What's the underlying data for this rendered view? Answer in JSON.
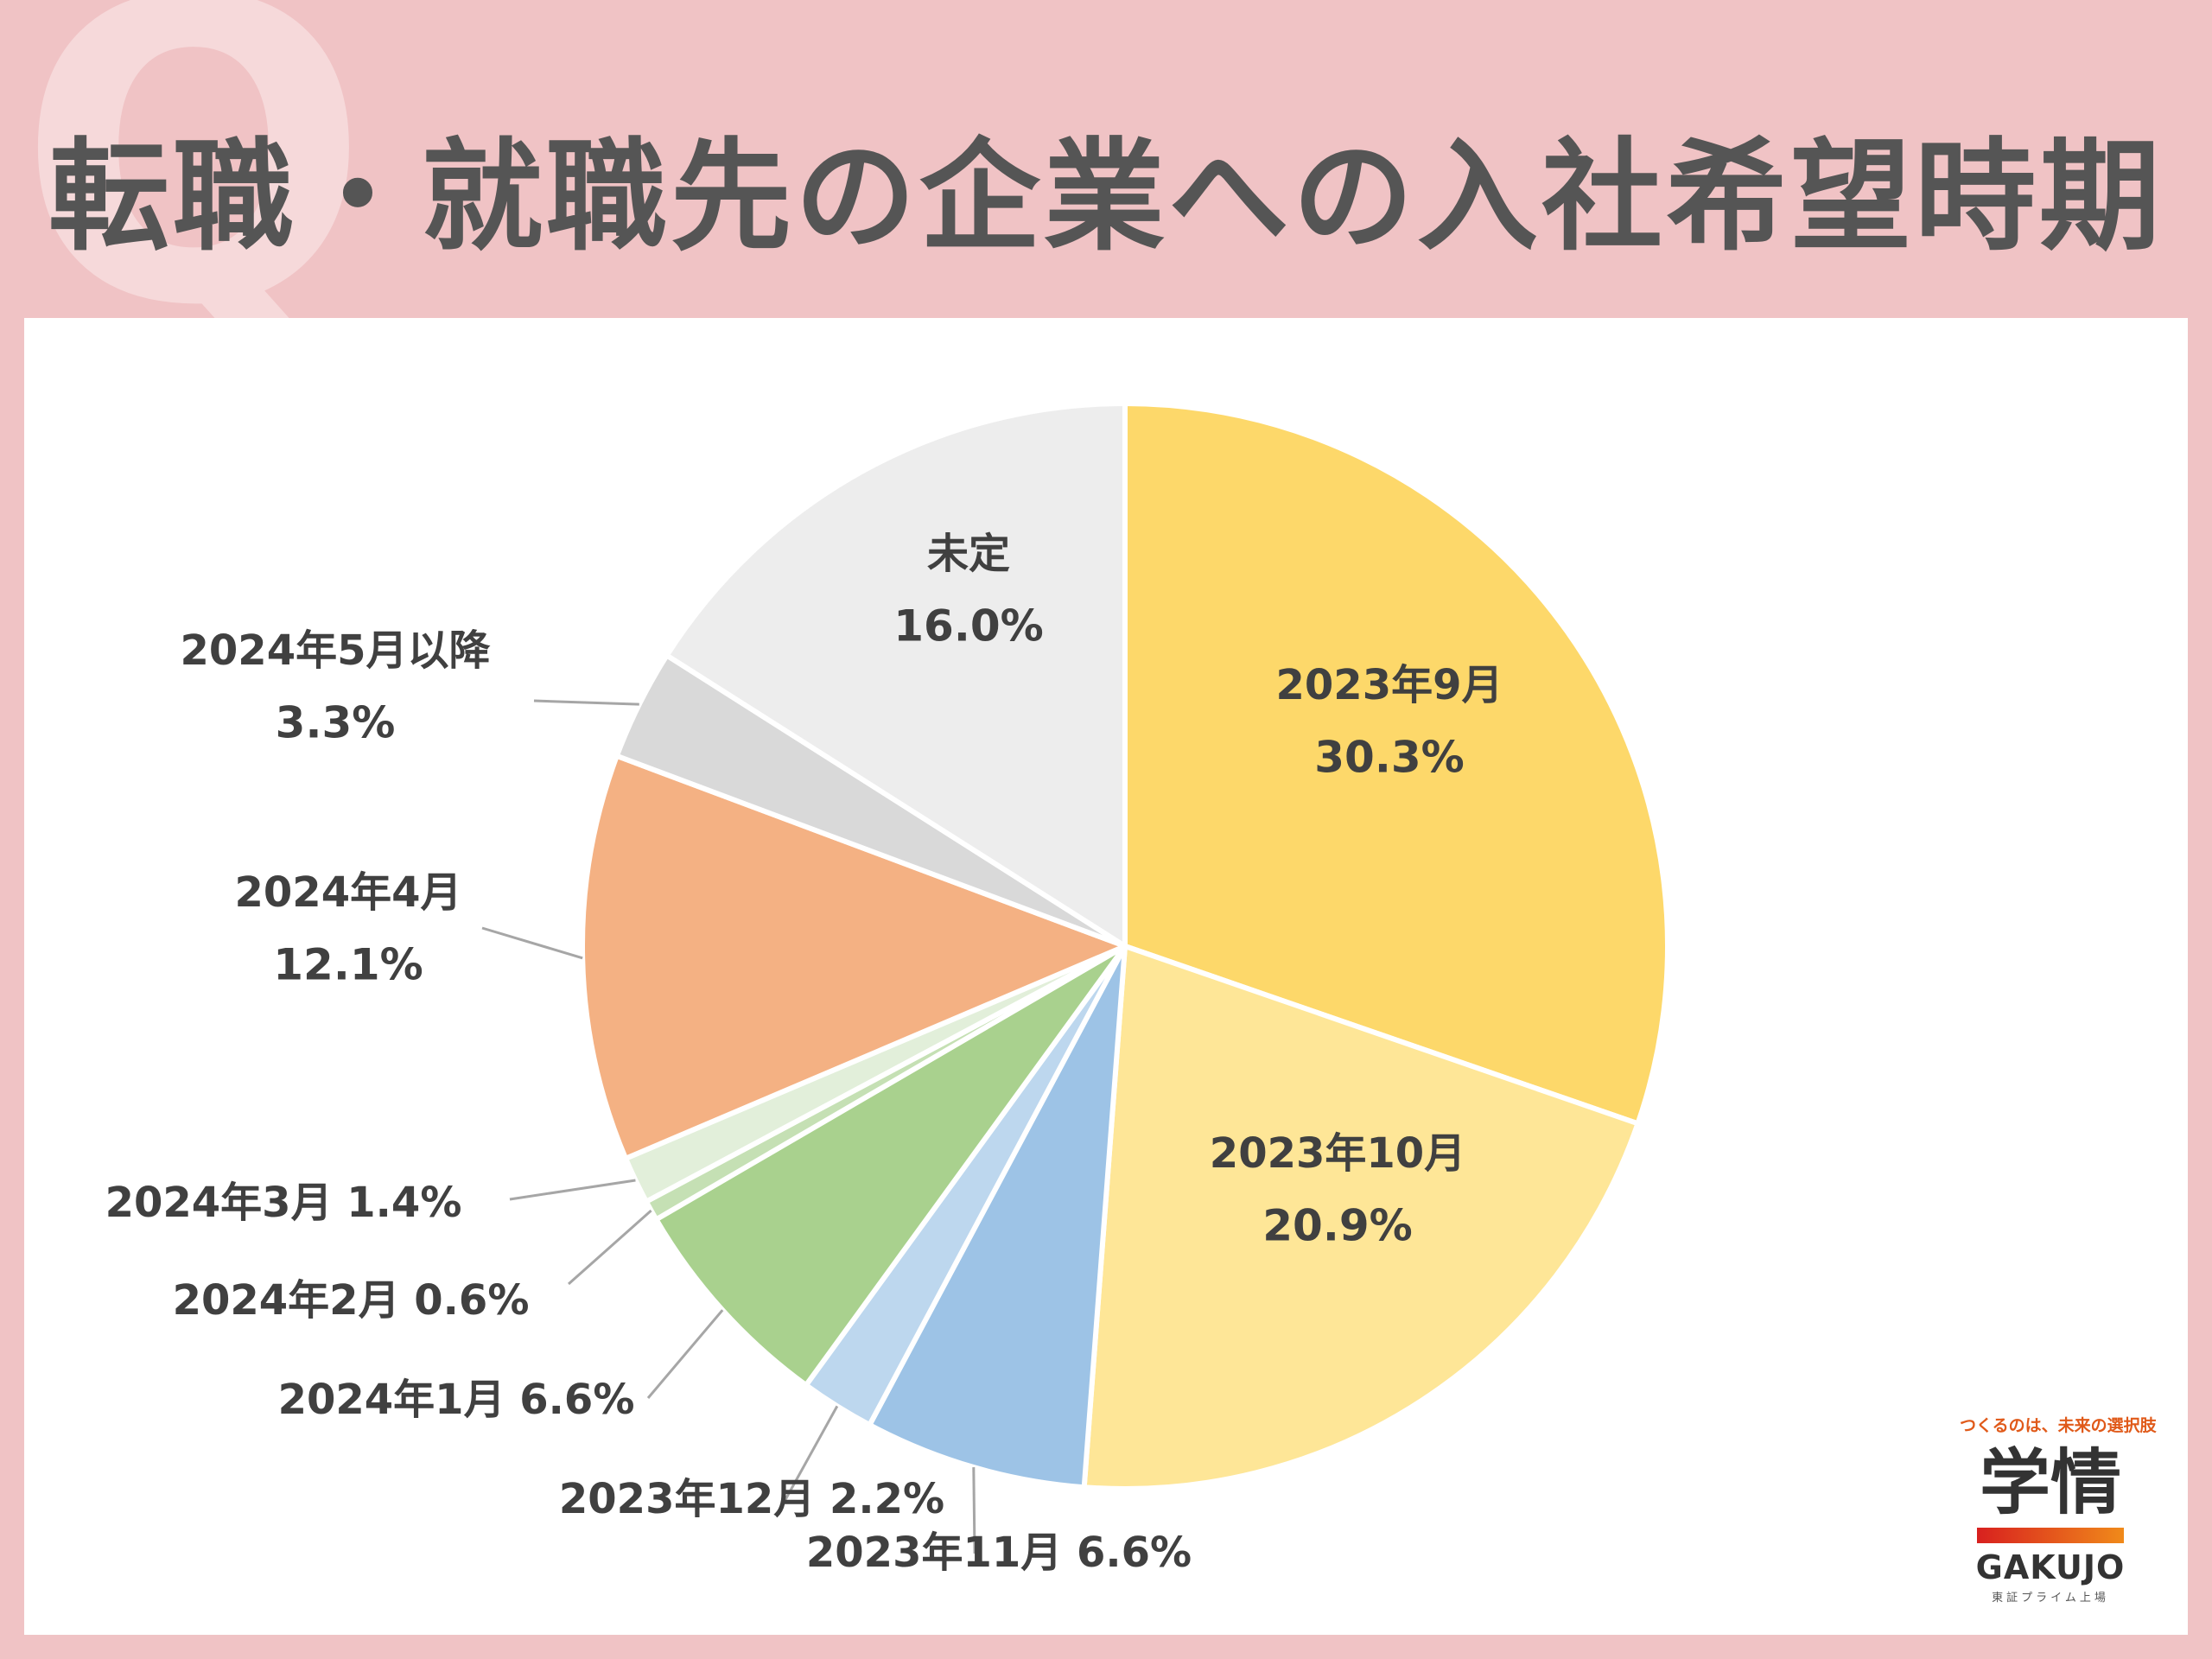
{
  "title": "転職・就職先の企業への入社希望時期",
  "q_mark": "Q",
  "logo": {
    "tagline": "つくるのは、未来の選択肢",
    "mark": "学情",
    "en": "GAKUJO",
    "sub": "東証プライム上場"
  },
  "chart_data": {
    "type": "pie",
    "title": "転職・就職先の企業への入社希望時期",
    "start_angle_deg": 0,
    "direction": "clockwise",
    "slices": [
      {
        "label": "2023年9月",
        "value": 30.3,
        "pct_text": "30.3%",
        "color": "#fdd86a",
        "label_style": "inside"
      },
      {
        "label": "2023年10月",
        "value": 20.9,
        "pct_text": "20.9%",
        "color": "#fee697",
        "label_style": "inside"
      },
      {
        "label": "2023年11月",
        "value": 6.6,
        "pct_text": "6.6%",
        "color": "#9dc3e6",
        "label_style": "outside-single"
      },
      {
        "label": "2023年12月",
        "value": 2.2,
        "pct_text": "2.2%",
        "color": "#bdd7ee",
        "label_style": "outside-single"
      },
      {
        "label": "2024年1月",
        "value": 6.6,
        "pct_text": "6.6%",
        "color": "#a9d18e",
        "label_style": "outside-single"
      },
      {
        "label": "2024年2月",
        "value": 0.6,
        "pct_text": "0.6%",
        "color": "#c5e0b4",
        "label_style": "outside-single"
      },
      {
        "label": "2024年3月",
        "value": 1.4,
        "pct_text": "1.4%",
        "color": "#e2efda",
        "label_style": "outside-single"
      },
      {
        "label": "2024年4月",
        "value": 12.1,
        "pct_text": "12.1%",
        "color": "#f4b183",
        "label_style": "outside-double"
      },
      {
        "label": "2024年5月以降",
        "value": 3.3,
        "pct_text": "3.3%",
        "color": "#d9d9d9",
        "label_style": "outside-double"
      },
      {
        "label": "未定",
        "value": 16.0,
        "pct_text": "16.0%",
        "color": "#ededed",
        "label_style": "inside"
      }
    ]
  }
}
